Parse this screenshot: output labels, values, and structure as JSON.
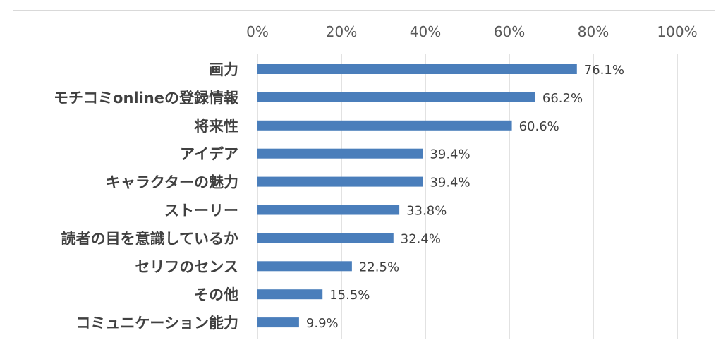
{
  "chart_data": {
    "type": "bar",
    "orientation": "horizontal",
    "categories": [
      "画力",
      "モチコミonlineの登録情報",
      "将来性",
      "アイデア",
      "キャラクターの魅力",
      "ストーリー",
      "読者の目を意識しているか",
      "セリフのセンス",
      "その他",
      "コミュニケーション能力"
    ],
    "values": [
      76.1,
      66.2,
      60.6,
      39.4,
      39.4,
      33.8,
      32.4,
      22.5,
      15.5,
      9.9
    ],
    "data_labels": [
      "76.1%",
      "66.2%",
      "60.6%",
      "39.4%",
      "39.4%",
      "33.8%",
      "32.4%",
      "22.5%",
      "15.5%",
      "9.9%"
    ],
    "x_ticks": [
      "0%",
      "20%",
      "40%",
      "60%",
      "80%",
      "100%"
    ],
    "xlim": [
      0,
      100
    ],
    "title": "",
    "xlabel": "",
    "ylabel": "",
    "grid": true,
    "bar_color": "#4a7ebb",
    "grid_color": "#d9d9d9"
  }
}
